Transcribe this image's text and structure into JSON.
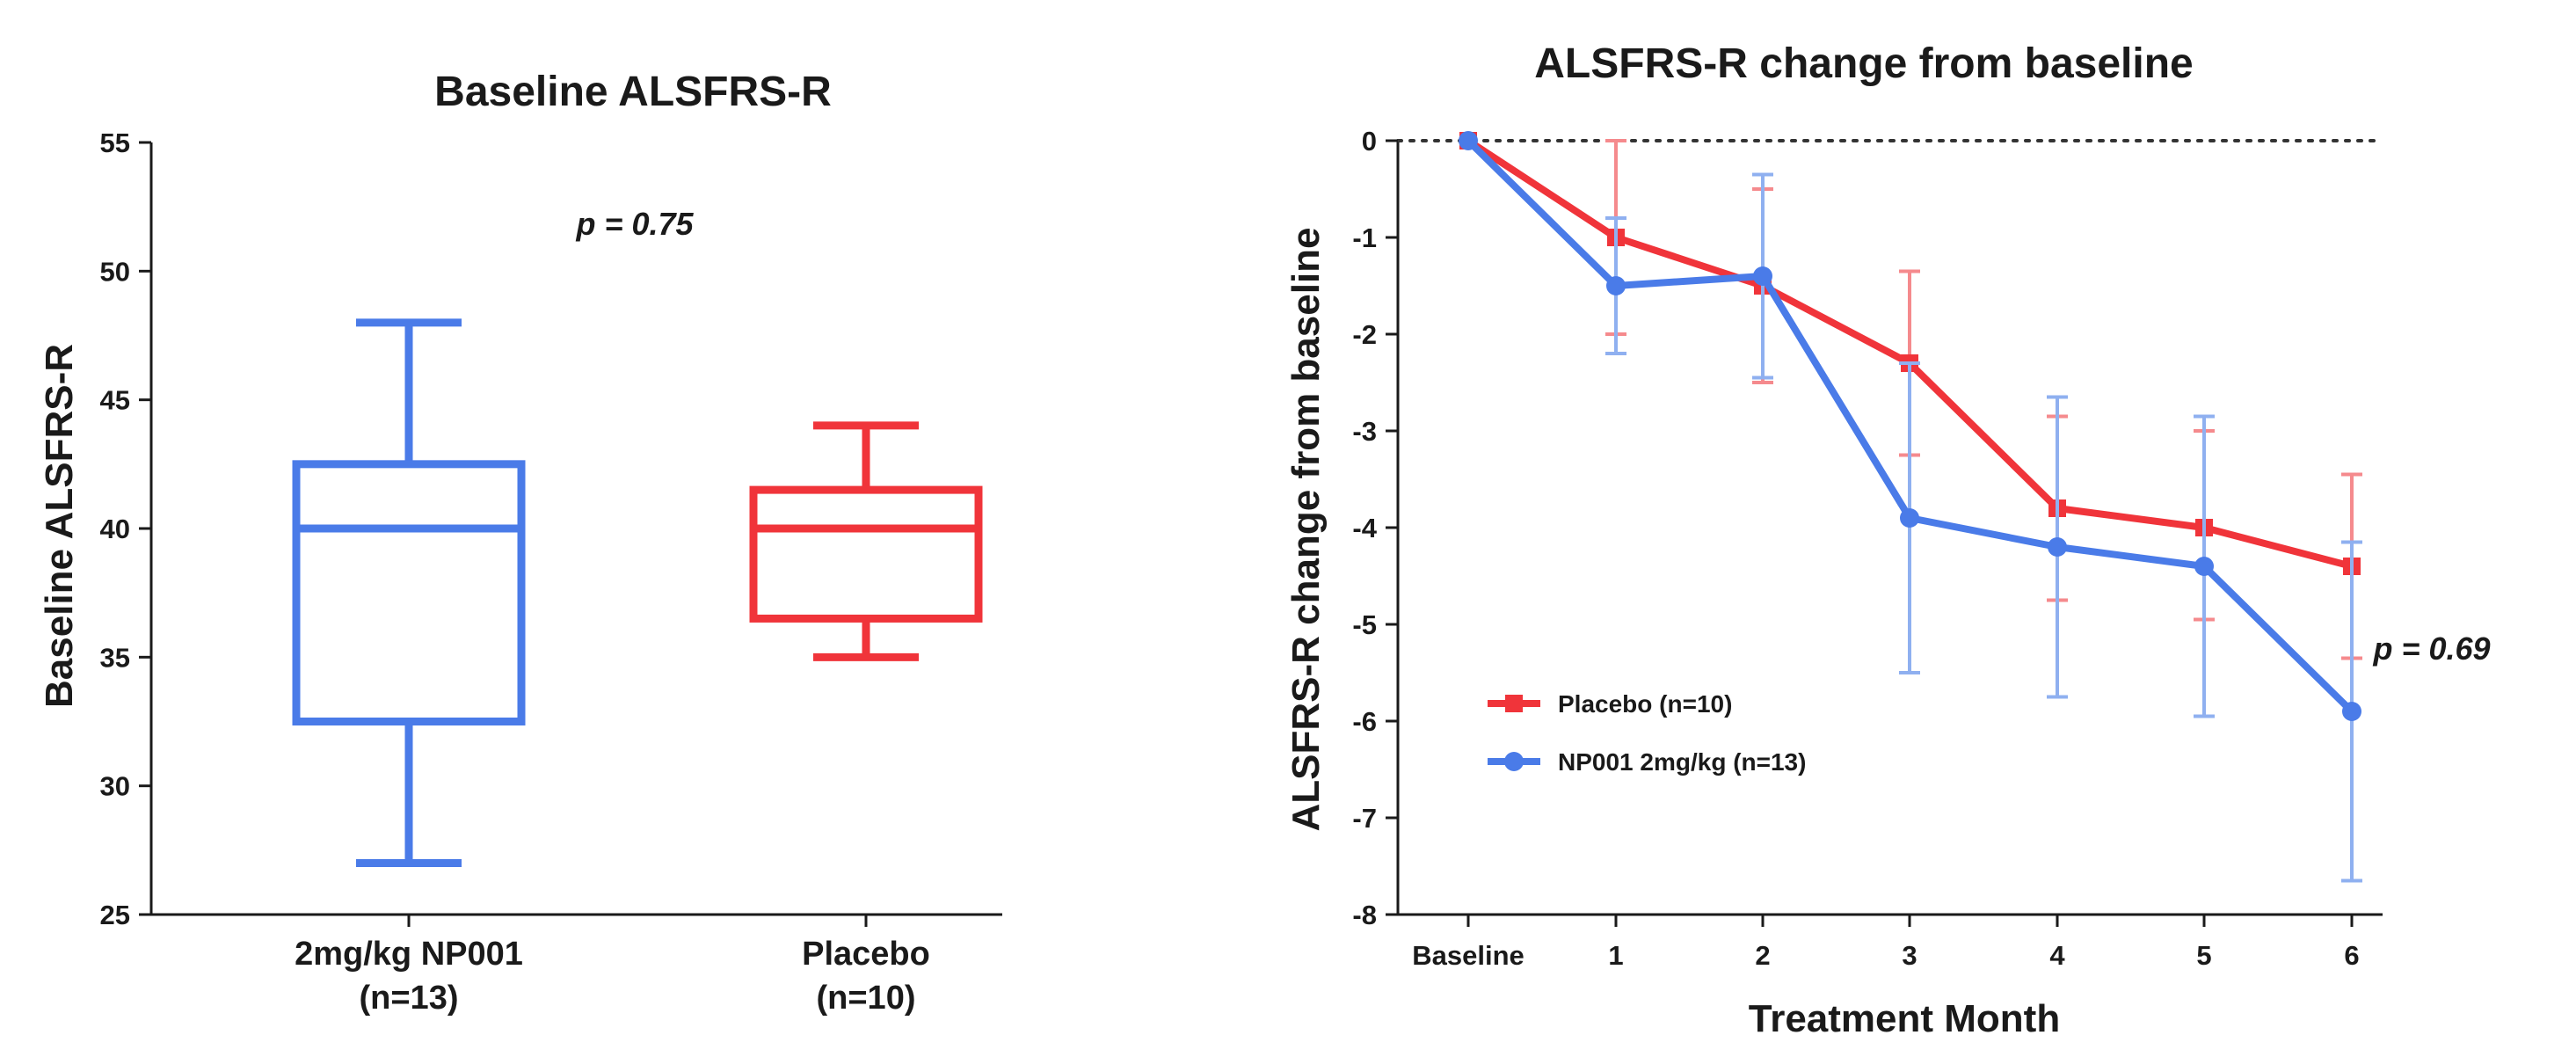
{
  "colors": {
    "drug": "#4a7be8",
    "placebo": "#f0343a",
    "drug_light": "#8fb0f0",
    "placebo_light": "#f58a8d",
    "axis": "#1a1a1a"
  },
  "chart_data": [
    {
      "type": "box",
      "title": "Baseline ALSFRS-R",
      "ylabel": "Baseline ALSFRS-R",
      "xlabel": "",
      "ylim": [
        25,
        55
      ],
      "yticks": [
        25,
        30,
        35,
        40,
        45,
        50,
        55
      ],
      "annotation": "p = 0.75",
      "groups": [
        {
          "key": "drug",
          "label_line1": "2mg/kg NP001",
          "label_line2": "(n=13)",
          "min": 27,
          "q1": 32.5,
          "median": 40,
          "q3": 42.5,
          "max": 48
        },
        {
          "key": "placebo",
          "label_line1": "Placebo",
          "label_line2": "(n=10)",
          "min": 35,
          "q1": 36.5,
          "median": 40,
          "q3": 41.5,
          "max": 44
        }
      ]
    },
    {
      "type": "line",
      "title": "ALSFRS-R change from baseline",
      "ylabel": "ALSFRS-R change from baseline",
      "xlabel": "Treatment Month",
      "categories": [
        "Baseline",
        "1",
        "2",
        "3",
        "4",
        "5",
        "6"
      ],
      "ylim": [
        -8,
        0
      ],
      "yticks": [
        0,
        -1,
        -2,
        -3,
        -4,
        -5,
        -6,
        -7,
        -8
      ],
      "reference_line": 0,
      "annotation": "p = 0.69",
      "series": [
        {
          "key": "placebo",
          "name": "Placebo (n=10)",
          "marker": "square",
          "values": [
            0,
            -1.0,
            -1.5,
            -2.3,
            -3.8,
            -4.0,
            -4.4
          ],
          "err_low": [
            0,
            -2.0,
            -2.5,
            -3.25,
            -4.75,
            -4.95,
            -5.35
          ],
          "err_high": [
            0,
            0.0,
            -0.5,
            -1.35,
            -2.85,
            -3.0,
            -3.45
          ]
        },
        {
          "key": "drug",
          "name": "NP001 2mg/kg (n=13)",
          "marker": "circle",
          "values": [
            0,
            -1.5,
            -1.4,
            -3.9,
            -4.2,
            -4.4,
            -5.9
          ],
          "err_low": [
            0,
            -2.2,
            -2.45,
            -5.5,
            -5.75,
            -5.95,
            -7.65
          ],
          "err_high": [
            0,
            -0.8,
            -0.35,
            -2.3,
            -2.65,
            -2.85,
            -4.15
          ]
        }
      ]
    }
  ]
}
